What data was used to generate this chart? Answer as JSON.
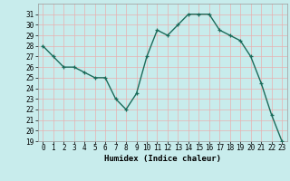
{
  "x": [
    0,
    1,
    2,
    3,
    4,
    5,
    6,
    7,
    8,
    9,
    10,
    11,
    12,
    13,
    14,
    15,
    16,
    17,
    18,
    19,
    20,
    21,
    22,
    23
  ],
  "y": [
    28,
    27,
    26,
    26,
    25.5,
    25,
    25,
    23,
    22,
    23.5,
    27,
    29.5,
    29,
    30,
    31,
    31,
    31,
    29.5,
    29,
    28.5,
    27,
    24.5,
    21.5,
    19
  ],
  "line_color": "#1a6b5a",
  "marker_color": "#1a6b5a",
  "bg_color": "#c8ecec",
  "grid_color": "#e8b0b0",
  "xlabel": "Humidex (Indice chaleur)",
  "ylim": [
    19,
    32
  ],
  "xlim": [
    -0.5,
    23.5
  ],
  "yticks": [
    19,
    20,
    21,
    22,
    23,
    24,
    25,
    26,
    27,
    28,
    29,
    30,
    31
  ],
  "xticks": [
    0,
    1,
    2,
    3,
    4,
    5,
    6,
    7,
    8,
    9,
    10,
    11,
    12,
    13,
    14,
    15,
    16,
    17,
    18,
    19,
    20,
    21,
    22,
    23
  ],
  "xtick_labels": [
    "0",
    "1",
    "2",
    "3",
    "4",
    "5",
    "6",
    "7",
    "8",
    "9",
    "10",
    "11",
    "12",
    "13",
    "14",
    "15",
    "16",
    "17",
    "18",
    "19",
    "20",
    "21",
    "22",
    "23"
  ],
  "label_fontsize": 6.5,
  "tick_fontsize": 5.5,
  "line_width": 1.0,
  "marker_size": 3.5
}
